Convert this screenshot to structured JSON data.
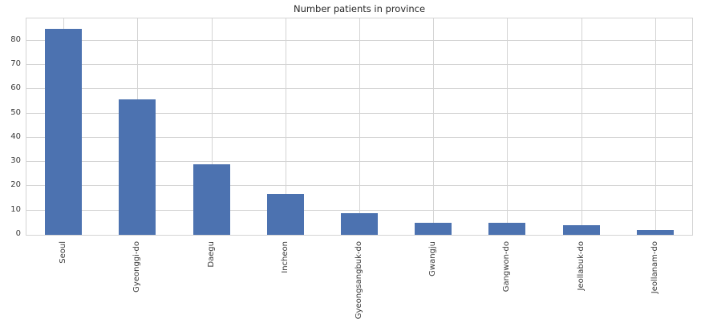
{
  "title": "Number patients in province",
  "colors": {
    "bar": "#4c72b0",
    "grid": "#d4d4d4",
    "title_text": "#262626",
    "tick_text": "#3a3a3a",
    "background": "#ffffff"
  },
  "chart_data": {
    "type": "bar",
    "title": "Number patients in province",
    "categories": [
      "Seoul",
      "Gyeonggi-do",
      "Daegu",
      "Incheon",
      "Gyeongsangbuk-do",
      "Gwangju",
      "Gangwon-do",
      "Jeollabuk-do",
      "Jeollanam-do"
    ],
    "values": [
      85,
      56,
      29,
      17,
      9,
      5,
      5,
      4,
      2
    ],
    "xlabel": "",
    "ylabel": "",
    "ylim": [
      0,
      89.25
    ],
    "yticks": [
      0,
      10,
      20,
      30,
      40,
      50,
      60,
      70,
      80
    ],
    "grid": "both",
    "legend": "none",
    "x_tick_rotation": 90,
    "bar_width_fraction": 0.5
  }
}
